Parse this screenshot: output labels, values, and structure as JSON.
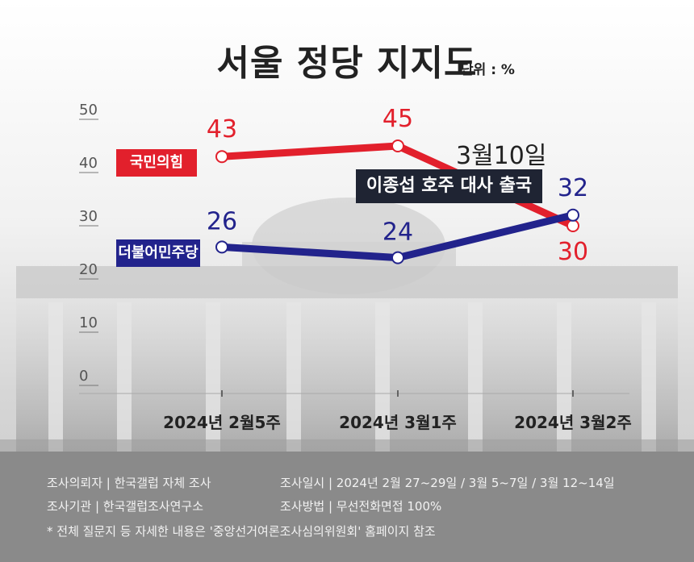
{
  "title": "서울 정당 지지도",
  "unit": "단위 : %",
  "event": {
    "date": "3월10일",
    "text": "이종섭 호주 대사 출국"
  },
  "colors": {
    "red": "#e2202c",
    "blue": "#22238c"
  },
  "chart_data": {
    "type": "line",
    "categories": [
      "2024년 2월5주",
      "2024년 3월1주",
      "2024년 3월2주"
    ],
    "ylim": [
      0,
      50
    ],
    "yticks": [
      0,
      10,
      20,
      30,
      40,
      50
    ],
    "series": [
      {
        "name": "국민의힘",
        "values": [
          43,
          45,
          30
        ],
        "color": "#e2202c"
      },
      {
        "name": "더불어민주당",
        "values": [
          26,
          24,
          32
        ],
        "color": "#22238c"
      }
    ]
  },
  "footer": {
    "row1_left": "조사의뢰자  |  한국갤럽 자체 조사",
    "row1_right": "조사일시  |  2024년 2월 27~29일 / 3월 5~7일 / 3월 12~14일",
    "row2_left": "조사기관     |  한국갤럽조사연구소",
    "row2_right": "조사방법  |  무선전화면접 100%",
    "note": "* 전체 질문지 등 자세한 내용은 '중앙선거여론조사심의위원회' 홈페이지 참조"
  }
}
